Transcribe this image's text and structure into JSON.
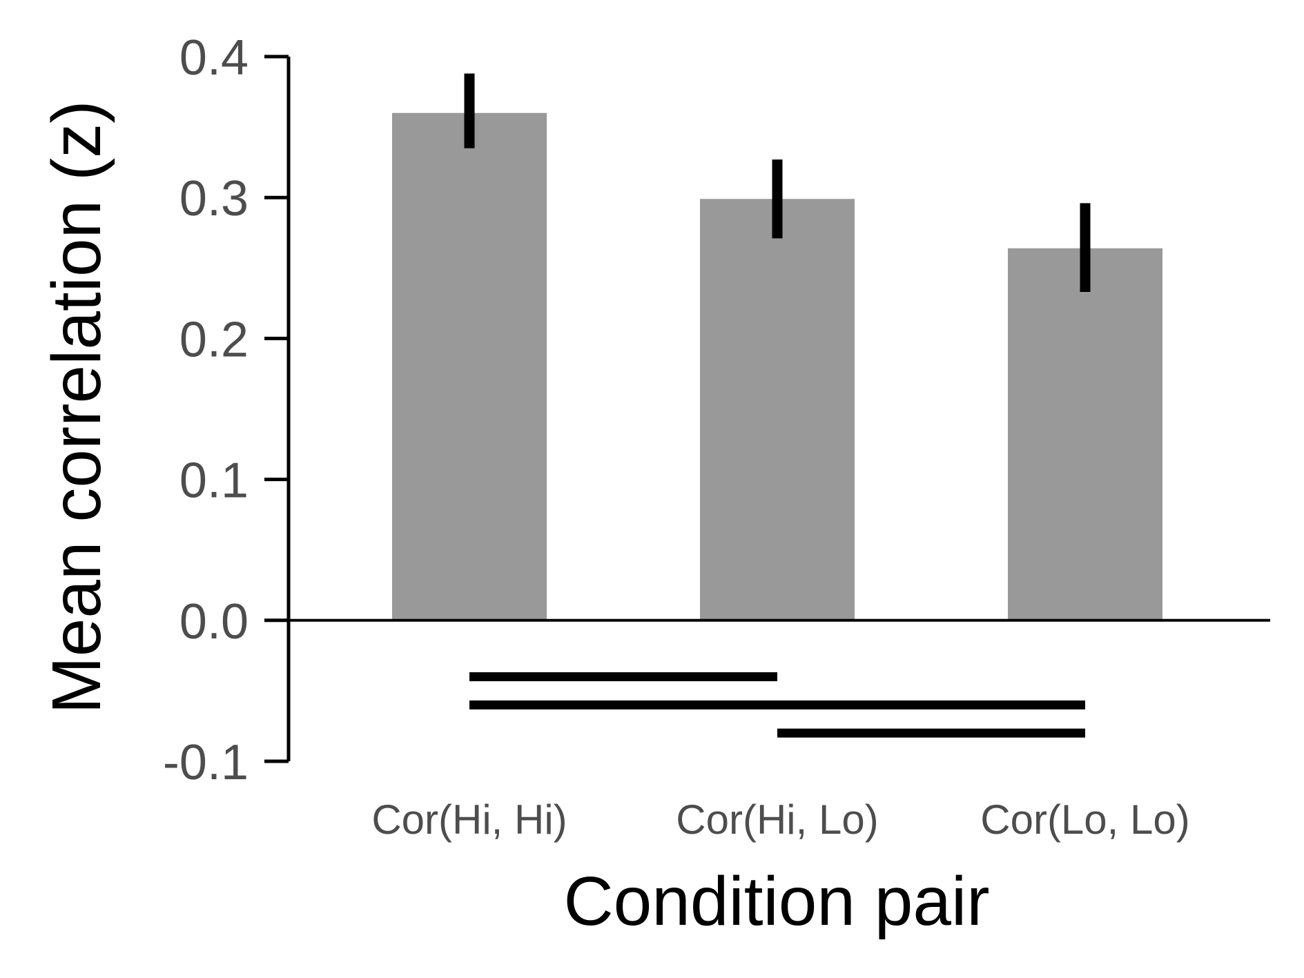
{
  "chart_data": {
    "type": "bar",
    "xlabel": "Condition pair",
    "ylabel": "Mean correlation (z)",
    "categories": [
      "Cor(Hi, Hi)",
      "Cor(Hi, Lo)",
      "Cor(Lo, Lo)"
    ],
    "values": [
      0.36,
      0.299,
      0.264
    ],
    "error_low": [
      0.335,
      0.271,
      0.233
    ],
    "error_high": [
      0.388,
      0.327,
      0.296
    ],
    "ylim": [
      -0.1,
      0.4
    ],
    "yticks": [
      "0.4",
      "0.3",
      "0.2",
      "0.1",
      "0.0",
      "-0.1"
    ],
    "ytick_values": [
      0.4,
      0.3,
      0.2,
      0.1,
      0.0,
      -0.1
    ],
    "bar_color": "#999999",
    "comparisons": [
      {
        "from": 0,
        "to": 1,
        "y": -0.04
      },
      {
        "from": 0,
        "to": 2,
        "y": -0.06
      },
      {
        "from": 1,
        "to": 2,
        "y": -0.08
      }
    ],
    "grid": false,
    "legend": "none"
  }
}
